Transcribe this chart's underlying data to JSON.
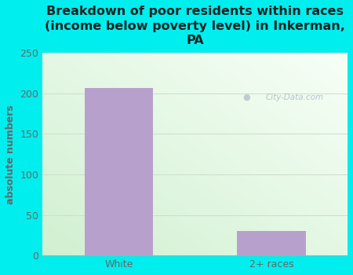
{
  "categories": [
    "White",
    "2+ races"
  ],
  "values": [
    207,
    30
  ],
  "bar_color": "#b8a0cc",
  "title": "Breakdown of poor residents within races\n(income below poverty level) in Inkerman,\nPA",
  "ylabel": "absolute numbers",
  "ylim": [
    0,
    250
  ],
  "yticks": [
    0,
    50,
    100,
    150,
    200,
    250
  ],
  "figure_bg_color": "#00eeee",
  "grid_color": "#ccddcc",
  "title_fontsize": 11.5,
  "ylabel_fontsize": 9,
  "tick_fontsize": 9,
  "title_color": "#222222",
  "tick_color": "#666666",
  "ylabel_color": "#666666",
  "watermark_text": "City-Data.com",
  "watermark_color": "#aabbc8",
  "plot_bg_color_tl": "#f5fdf5",
  "plot_bg_color_br": "#d8edd8"
}
